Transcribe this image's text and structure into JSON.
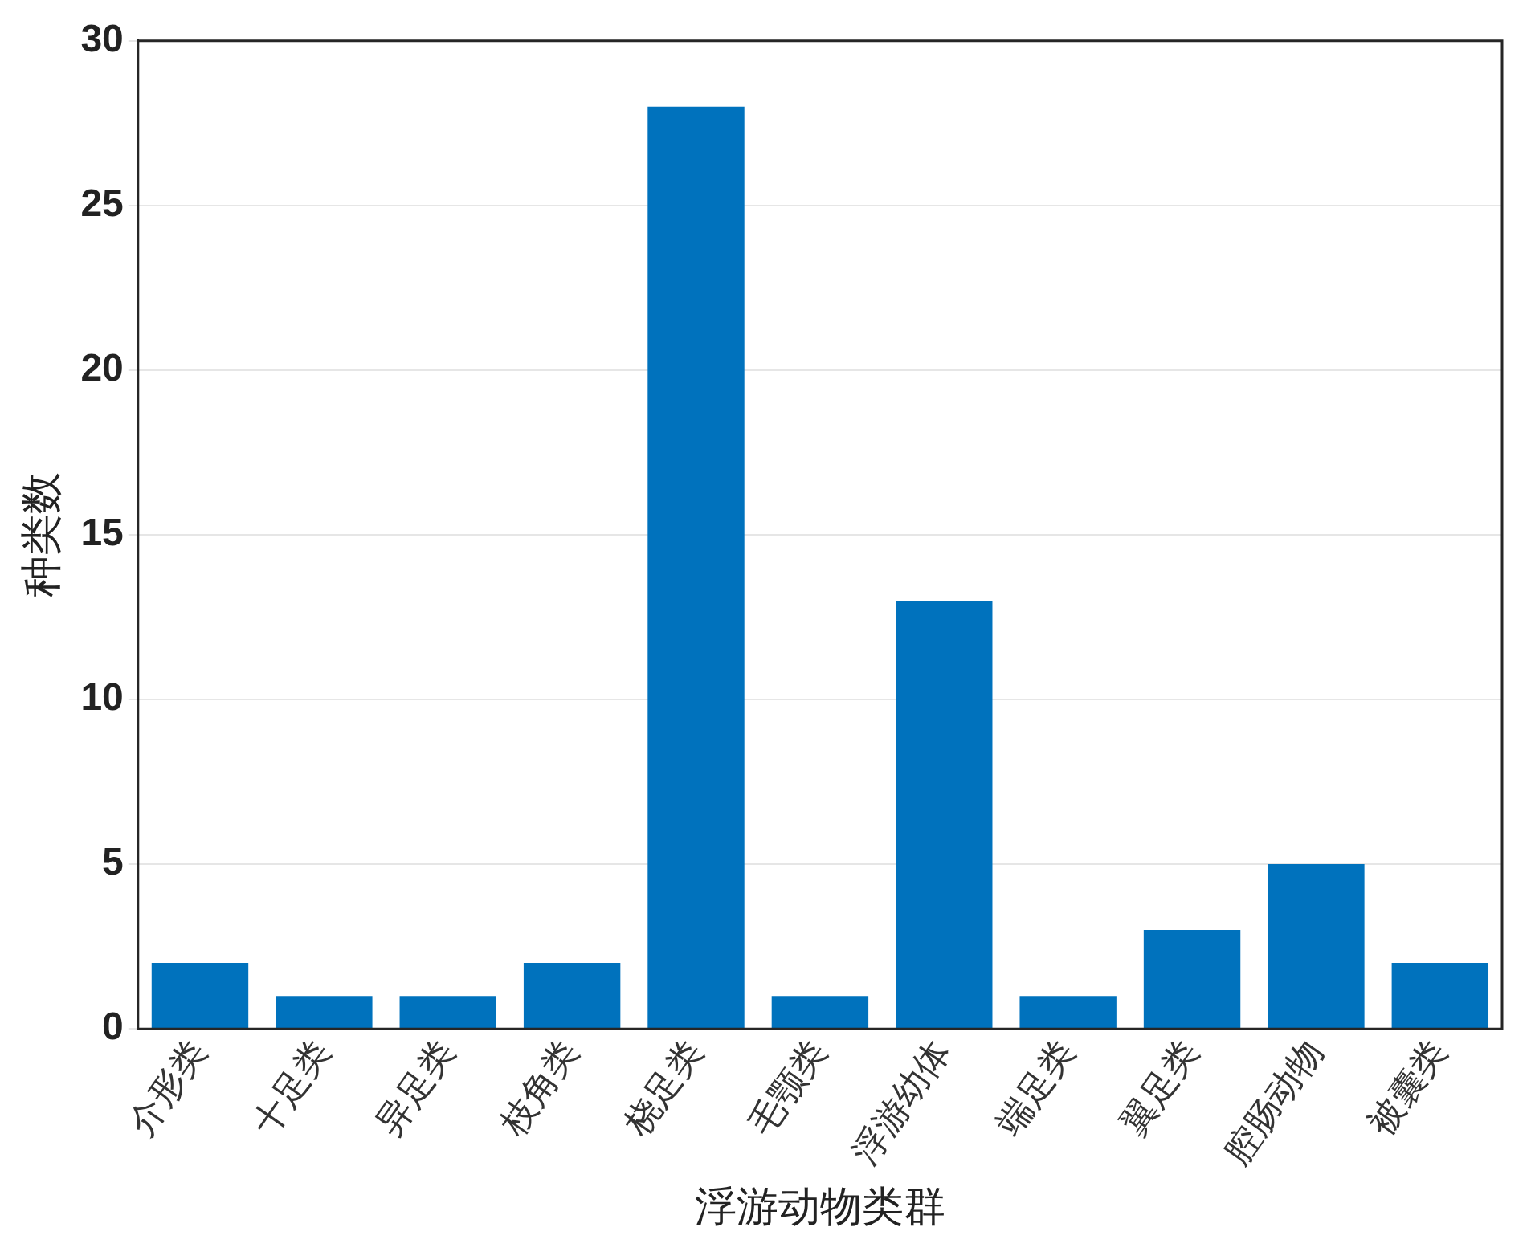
{
  "chart_data": {
    "type": "bar",
    "xlabel": "浮游动物类群",
    "ylabel": "种类数",
    "categories": [
      "介形类",
      "十足类",
      "异足类",
      "枝角类",
      "桡足类",
      "毛颚类",
      "浮游幼体",
      "端足类",
      "翼足类",
      "腔肠动物",
      "被囊类"
    ],
    "values": [
      2,
      1,
      1,
      2,
      28,
      1,
      13,
      1,
      3,
      5,
      2
    ],
    "color": "#0072bd",
    "ylim": [
      0,
      30
    ],
    "yticks": [
      0,
      5,
      10,
      15,
      20,
      25,
      30
    ],
    "grid": "y"
  }
}
